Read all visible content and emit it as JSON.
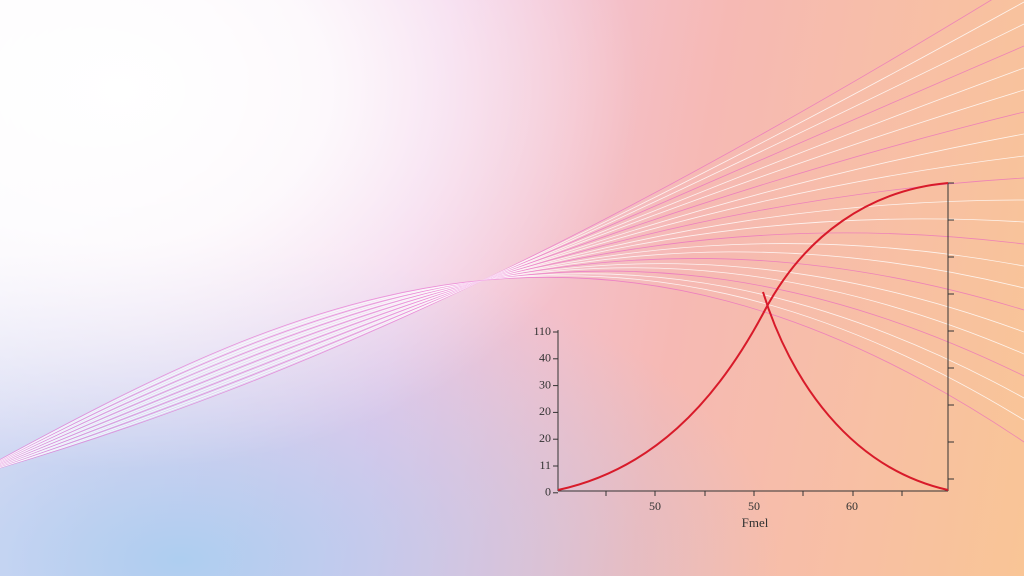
{
  "chart": {
    "y_labels": [
      "110",
      "40",
      "30",
      "20",
      "20",
      "11",
      "0"
    ],
    "x_labels": [
      "50",
      "50",
      "60"
    ],
    "x_title": "Fmel"
  }
}
